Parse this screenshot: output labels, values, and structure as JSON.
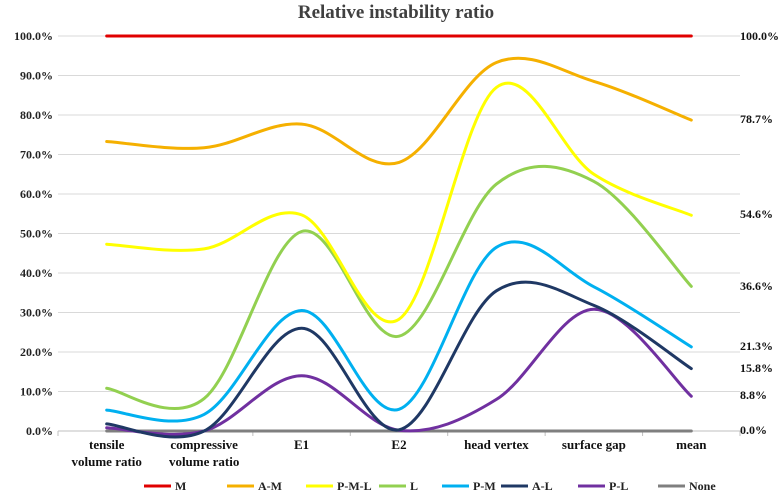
{
  "chart_data": {
    "type": "line",
    "title": "Relative instability ratio",
    "categories": [
      [
        "tensile",
        "volume ratio"
      ],
      [
        "compressive",
        "volume ratio"
      ],
      [
        "E1"
      ],
      [
        "E2"
      ],
      [
        "head vertex"
      ],
      [
        "surface gap"
      ],
      [
        "mean"
      ]
    ],
    "ylim": [
      0,
      100
    ],
    "yticks": [
      "0.0%",
      "10.0%",
      "20.0%",
      "30.0%",
      "40.0%",
      "50.0%",
      "60.0%",
      "70.0%",
      "80.0%",
      "90.0%",
      "100.0%"
    ],
    "grid": true,
    "smooth": true,
    "legend_position": "bottom",
    "series": [
      {
        "name": "M",
        "color": "#e00000",
        "values": [
          100,
          100,
          100,
          100,
          100,
          100,
          100
        ]
      },
      {
        "name": "A-M",
        "color": "#f5b000",
        "values": [
          73.3,
          71.7,
          77.7,
          68.0,
          93.3,
          88.5,
          78.7
        ]
      },
      {
        "name": "P-M-L",
        "color": "#ffff00",
        "values": [
          47.3,
          46.1,
          54.7,
          28.3,
          87.0,
          65.0,
          54.6
        ]
      },
      {
        "name": "L",
        "color": "#92d050",
        "values": [
          10.8,
          8.2,
          50.5,
          24.0,
          62.5,
          63.2,
          36.6
        ]
      },
      {
        "name": "P-M",
        "color": "#00b0f0",
        "values": [
          5.3,
          4.2,
          30.5,
          5.5,
          46.5,
          36.5,
          21.3
        ]
      },
      {
        "name": "A-L",
        "color": "#1f3864",
        "values": [
          1.8,
          0.0,
          26.0,
          0.3,
          35.5,
          31.8,
          15.8
        ]
      },
      {
        "name": "P-L",
        "color": "#7030a0",
        "values": [
          0.8,
          0.0,
          14.0,
          0.2,
          8.0,
          30.8,
          8.8
        ]
      },
      {
        "name": "None",
        "color": "#7f7f7f",
        "values": [
          0,
          0,
          0,
          0,
          0,
          0,
          0
        ]
      }
    ],
    "end_labels": [
      "100.0%",
      "78.7%",
      "54.6%",
      "36.6%",
      "21.3%",
      "15.8%",
      "8.8%",
      "0.0%"
    ]
  }
}
